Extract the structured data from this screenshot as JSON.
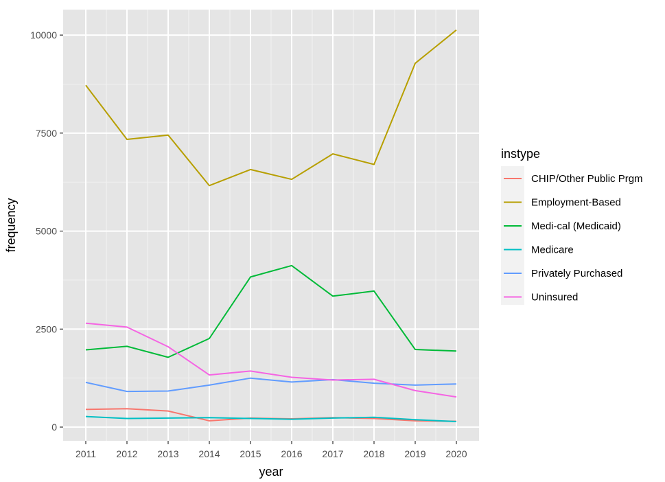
{
  "chart_data": {
    "type": "line",
    "title": "",
    "xlabel": "year",
    "ylabel": "frequency",
    "x": [
      2011,
      2012,
      2013,
      2014,
      2015,
      2016,
      2017,
      2018,
      2019,
      2020
    ],
    "xlim": [
      2010.45,
      2020.55
    ],
    "ylim": [
      -350,
      10650
    ],
    "yticks": [
      0,
      2500,
      5000,
      7500,
      10000
    ],
    "grid": true,
    "panel_background": "#E5E5E5",
    "legend": {
      "title": "instype",
      "position": "right"
    },
    "series": [
      {
        "name": "CHIP/Other Public Prgm",
        "color": "#F8766D",
        "values": [
          450,
          470,
          410,
          160,
          230,
          210,
          240,
          220,
          160,
          150
        ]
      },
      {
        "name": "Employment-Based",
        "color": "#B79F00",
        "values": [
          8720,
          7340,
          7450,
          6160,
          6570,
          6320,
          6970,
          6700,
          9280,
          10130
        ]
      },
      {
        "name": "Medi-cal (Medicaid)",
        "color": "#00BA38",
        "values": [
          1970,
          2060,
          1780,
          2260,
          3830,
          4120,
          3340,
          3470,
          1980,
          1940
        ]
      },
      {
        "name": "Medicare",
        "color": "#00BFC4",
        "values": [
          270,
          220,
          230,
          240,
          220,
          200,
          230,
          250,
          190,
          140
        ]
      },
      {
        "name": "Privately Purchased",
        "color": "#619CFF",
        "values": [
          1140,
          910,
          920,
          1070,
          1250,
          1150,
          1210,
          1120,
          1070,
          1100
        ]
      },
      {
        "name": "Uninsured",
        "color": "#F564E3",
        "values": [
          2650,
          2550,
          2050,
          1330,
          1430,
          1270,
          1200,
          1220,
          930,
          770
        ]
      }
    ]
  }
}
